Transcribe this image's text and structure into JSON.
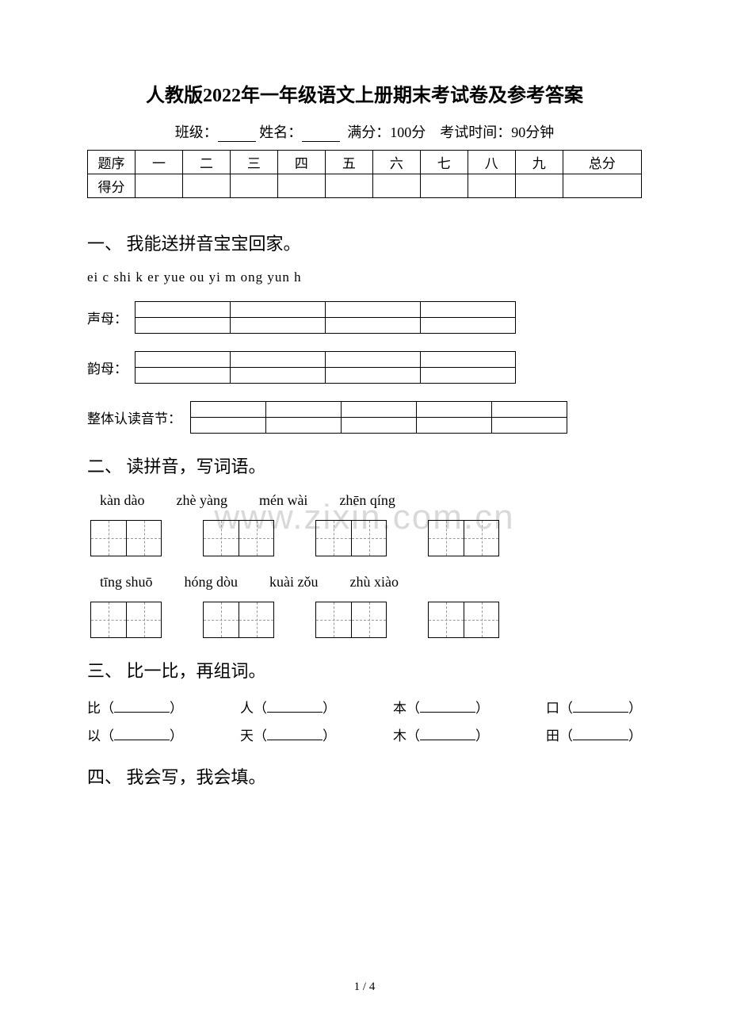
{
  "title": "人教版2022年一年级语文上册期末考试卷及参考答案",
  "info": {
    "class_label": "班级：",
    "name_label": "姓名：",
    "full_marks": "满分：100分",
    "duration": "考试时间：90分钟"
  },
  "score_table": {
    "headers": [
      "题序",
      "一",
      "二",
      "三",
      "四",
      "五",
      "六",
      "七",
      "八",
      "九",
      "总分"
    ],
    "row_label": "得分"
  },
  "section1": {
    "heading": "一、 我能送拼音宝宝回家。",
    "pinyin_list": "ei  c  shi  k  er  yue  ou  yi  m  ong    yun  h",
    "labels": {
      "shengmu": "声母：",
      "yunmu": "韵母：",
      "zhengti": "整体认读音节："
    },
    "grid_cols_a": 4,
    "grid_cols_b": 5,
    "cell_w_a": 120,
    "cell_w_b": 95
  },
  "section2": {
    "heading": "二、 读拼音，写词语。",
    "row1": [
      "kàn dào",
      "zhè yàng",
      "mén wài",
      "zhēn qíng"
    ],
    "row2": [
      "tīng shuō",
      "hóng dòu",
      "kuài zǒu",
      "zhù xiào"
    ]
  },
  "section3": {
    "heading": "三、 比一比，再组词。",
    "row1": [
      "比",
      "人",
      "本",
      "口"
    ],
    "row2": [
      "以",
      "天",
      "木",
      "田"
    ]
  },
  "section4": {
    "heading": "四、 我会写，我会填。"
  },
  "watermark": "www.zixin.com.cn",
  "footer": "1 / 4"
}
